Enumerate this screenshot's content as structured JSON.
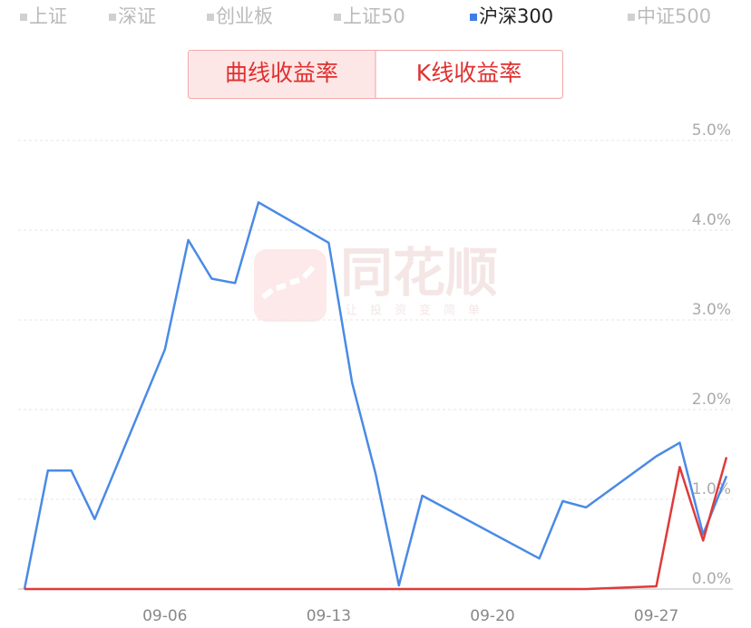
{
  "tabs": {
    "items": [
      "上证",
      "深证",
      "创业板",
      "上证50",
      "沪深300",
      "中证500"
    ],
    "selected": 4
  },
  "buttons": {
    "items": [
      "曲线收益率",
      "K线收益率"
    ],
    "selected": 0
  },
  "watermark": {
    "title": "同花顺",
    "slogan": "让投资变简单"
  },
  "chart_data": {
    "type": "line",
    "x": [
      "08-31",
      "09-01",
      "09-02",
      "09-03",
      "09-06",
      "09-07",
      "09-08",
      "09-09",
      "09-10",
      "09-13",
      "09-14",
      "09-15",
      "09-16",
      "09-17",
      "09-22",
      "09-23",
      "09-24",
      "09-27",
      "09-28",
      "09-29",
      "09-30"
    ],
    "xlim": [
      "08-31",
      "09-30"
    ],
    "xticks": [
      "09-06",
      "09-13",
      "09-20",
      "09-27"
    ],
    "series": [
      {
        "color": "#4a8ae6",
        "values": [
          0,
          1.32,
          1.32,
          0.78,
          2.67,
          3.89,
          3.46,
          3.41,
          4.31,
          3.86,
          2.3,
          1.29,
          0.04,
          1.04,
          0.34,
          0.98,
          0.91,
          1.48,
          1.63,
          0.61,
          1.26
        ]
      },
      {
        "color": "#e03a3a",
        "values": [
          0,
          0,
          0,
          0,
          0,
          0,
          0,
          0,
          0,
          0,
          0,
          0,
          0,
          0,
          0,
          0,
          0,
          0.03,
          1.36,
          0.54,
          1.47
        ]
      }
    ],
    "ylim": [
      0,
      5
    ],
    "yticks": [
      {
        "value": 0,
        "label": "0.0%"
      },
      {
        "value": 1,
        "label": "1.0%"
      },
      {
        "value": 2,
        "label": "2.0%"
      },
      {
        "value": 3,
        "label": "3.0%"
      },
      {
        "value": 4,
        "label": "4.0%"
      },
      {
        "value": 5,
        "label": "5.0%"
      }
    ],
    "grid": true
  }
}
